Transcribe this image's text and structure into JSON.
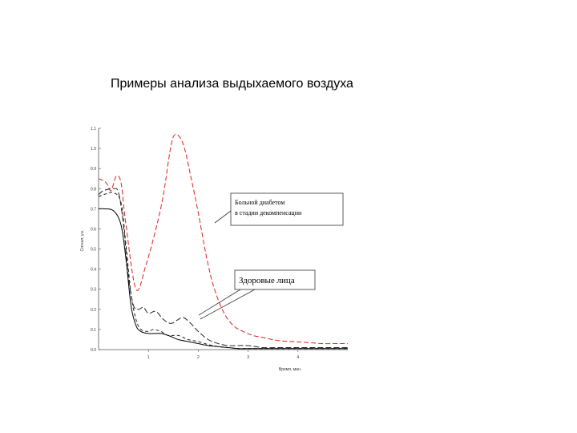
{
  "slide": {
    "title": "Примеры анализа выдыхаемого воздуха"
  },
  "chart_data": {
    "type": "line",
    "xlabel": "Время, мин.",
    "ylabel": "Сигнал, у.е.",
    "xlim": [
      0,
      5
    ],
    "ylim": [
      0.0,
      1.1
    ],
    "x_ticks": [
      "1",
      "2",
      "3",
      "4"
    ],
    "y_ticks": [
      "0.0",
      "0.1",
      "0.2",
      "0.3",
      "0.4",
      "0.5",
      "0.6",
      "0.7",
      "0.8",
      "0.9",
      "1.0",
      "1.1"
    ],
    "grid": false,
    "series": [
      {
        "color": "#e02020",
        "dash": "6,3",
        "x": [
          0.0,
          0.15,
          0.25,
          0.35,
          0.45,
          0.55,
          0.75,
          0.95,
          1.15,
          1.3,
          1.45,
          1.55,
          1.7,
          1.85,
          2.0,
          2.15,
          2.3,
          2.5,
          2.7,
          2.9,
          3.1,
          3.3,
          3.6,
          3.9,
          4.2,
          4.5,
          4.8,
          5.0
        ],
        "y": [
          0.85,
          0.83,
          0.79,
          0.86,
          0.83,
          0.62,
          0.3,
          0.42,
          0.6,
          0.77,
          1.01,
          1.07,
          1.02,
          0.86,
          0.68,
          0.48,
          0.32,
          0.19,
          0.12,
          0.09,
          0.07,
          0.06,
          0.045,
          0.04,
          0.035,
          0.03,
          0.03,
          0.03
        ]
      },
      {
        "color": "#222222",
        "dash": "7,3",
        "x": [
          0.0,
          0.1,
          0.3,
          0.4,
          0.5,
          0.6,
          0.7,
          0.8,
          0.9,
          1.0,
          1.15,
          1.3,
          1.45,
          1.6,
          1.7,
          1.85,
          2.0,
          2.2,
          2.4,
          2.6,
          2.8,
          3.0,
          3.3,
          3.6,
          3.9,
          4.2,
          4.5,
          4.8,
          5.0
        ],
        "y": [
          0.77,
          0.79,
          0.8,
          0.78,
          0.62,
          0.36,
          0.22,
          0.2,
          0.21,
          0.18,
          0.19,
          0.15,
          0.13,
          0.15,
          0.16,
          0.13,
          0.09,
          0.05,
          0.03,
          0.02,
          0.02,
          0.02,
          0.01,
          0.01,
          0.01,
          0.01,
          0.01,
          0.01,
          0.01
        ]
      },
      {
        "color": "#222222",
        "dash": "4,3",
        "x": [
          0.0,
          0.1,
          0.3,
          0.45,
          0.55,
          0.65,
          0.75,
          0.85,
          1.0,
          1.1,
          1.25,
          1.4,
          1.6,
          1.8,
          2.0,
          2.2,
          2.4,
          2.6,
          2.8,
          3.0,
          3.3,
          3.6,
          3.9,
          4.2,
          4.5,
          4.8,
          5.0
        ],
        "y": [
          0.76,
          0.77,
          0.78,
          0.73,
          0.52,
          0.28,
          0.15,
          0.1,
          0.09,
          0.1,
          0.09,
          0.07,
          0.07,
          0.05,
          0.04,
          0.025,
          0.015,
          0.01,
          0.005,
          0.005,
          0.005,
          0.005,
          0.005,
          0.005,
          0.005,
          0.005,
          0.005
        ]
      },
      {
        "color": "#000000",
        "dash": "",
        "x": [
          0.0,
          0.1,
          0.3,
          0.45,
          0.55,
          0.65,
          0.75,
          0.85,
          1.0,
          1.1,
          1.25,
          1.4,
          1.6,
          1.8,
          2.0,
          2.2,
          2.4,
          2.6,
          2.8,
          3.0,
          3.3,
          3.6,
          3.9,
          4.2,
          4.5,
          4.8,
          5.0
        ],
        "y": [
          0.7,
          0.7,
          0.69,
          0.62,
          0.45,
          0.22,
          0.12,
          0.09,
          0.08,
          0.08,
          0.08,
          0.07,
          0.05,
          0.04,
          0.03,
          0.02,
          0.015,
          0.01,
          0.005,
          0.005,
          0.005,
          0.005,
          0.005,
          0.005,
          0.005,
          0.005,
          0.005
        ]
      }
    ],
    "annotations": [
      {
        "lines": [
          "Больной диабетом",
          "в стадии декомпенсации"
        ]
      },
      {
        "lines": [
          "Здоровые лица"
        ]
      }
    ]
  }
}
